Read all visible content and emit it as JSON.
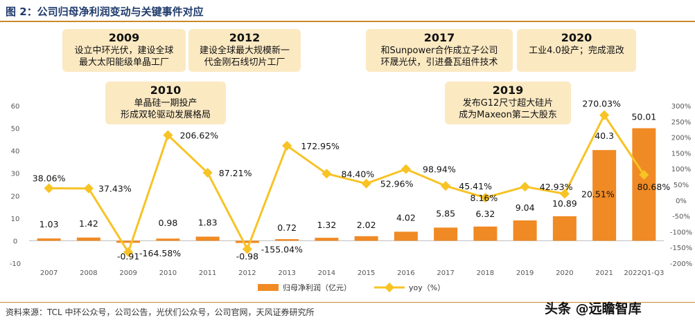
{
  "title": "图 2：公司归母净利润变动与关键事件对应",
  "source": "资料来源：TCL 中环公众号，公司公告，光伏们公众号，公司官网，天风证券研究所",
  "watermark": "头条 @远瞻智库",
  "events": [
    {
      "year": "2009",
      "lines": [
        "设立中环光伏，建设全球",
        "最大太阳能级单晶工厂"
      ]
    },
    {
      "year": "2012",
      "lines": [
        "建设全球最大规模新一",
        "代金刚石线切片工厂"
      ]
    },
    {
      "year": "2010",
      "lines": [
        "单晶硅一期投产",
        "形成双轮驱动发展格局"
      ]
    },
    {
      "year": "2017",
      "lines": [
        "和Sunpower合作成立子公司",
        "环晟光伏，引进叠瓦组件技术"
      ]
    },
    {
      "year": "2020",
      "lines": [
        "工业4.0投产；完成混改"
      ]
    },
    {
      "year": "2019",
      "lines": [
        "发布G12尺寸超大硅片",
        "成为Maxeon第二大股东"
      ]
    }
  ],
  "chart_data": {
    "type": "bar+line",
    "categories": [
      "2007",
      "2008",
      "2009",
      "2010",
      "2011",
      "2012",
      "2013",
      "2014",
      "2015",
      "2016",
      "2017",
      "2018",
      "2019",
      "2020",
      "2021",
      "2022Q1-Q3"
    ],
    "series": [
      {
        "name": "归母净利润（亿元）",
        "type": "bar",
        "axis": "left",
        "values": [
          1.03,
          1.42,
          -0.91,
          0.98,
          1.83,
          -0.98,
          0.72,
          1.32,
          2.02,
          4.02,
          5.85,
          6.32,
          9.04,
          10.89,
          40.3,
          50.01
        ],
        "labels": [
          "1.03",
          "1.42",
          "-0.91",
          "0.98",
          "1.83",
          "-0.98",
          "0.72",
          "1.32",
          "2.02",
          "4.02",
          "5.85",
          "6.32",
          "9.04",
          "10.89",
          "40.3",
          "50.01"
        ]
      },
      {
        "name": "yoy（%）",
        "type": "line",
        "axis": "right",
        "values": [
          38.06,
          37.43,
          -164.58,
          206.62,
          87.21,
          -155.04,
          172.95,
          84.4,
          52.96,
          98.94,
          45.41,
          8.16,
          42.93,
          20.51,
          270.03,
          80.68
        ],
        "labels": [
          "38.06%",
          "37.43%",
          "-164.58%",
          "206.62%",
          "87.21%",
          "-155.04%",
          "172.95%",
          "84.40%",
          "52.96%",
          "98.94%",
          "45.41%",
          "8.16%",
          "42.93%",
          "20.51%",
          "270.03%",
          "80.68%"
        ]
      }
    ],
    "y_left": {
      "ticks": [
        "60",
        "50",
        "40",
        "30",
        "20",
        "10",
        "0",
        "-10"
      ],
      "range": [
        -10,
        60
      ]
    },
    "y_right": {
      "ticks": [
        "300%",
        "250%",
        "200%",
        "150%",
        "100%",
        "50%",
        "0%",
        "-50%",
        "-100%",
        "-150%",
        "-200%"
      ],
      "range": [
        -200,
        300
      ]
    },
    "legend": "bottom-center",
    "colors": {
      "bar": "#f08a24",
      "line": "#f7c325",
      "box": "#fbe9c2",
      "title": "#1f3a6b",
      "rule": "#c9892b"
    }
  }
}
